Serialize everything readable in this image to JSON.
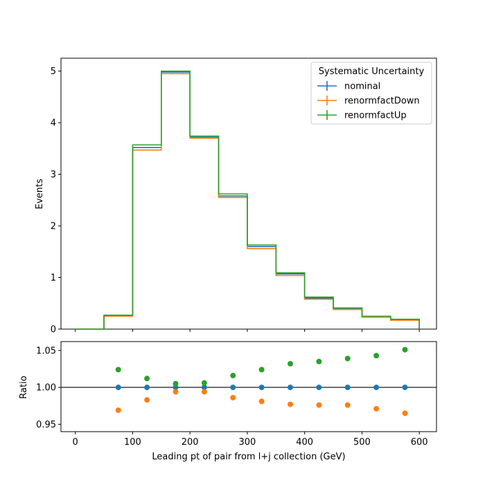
{
  "chart_data": [
    {
      "type": "line",
      "panel": "main",
      "drawstyle": "steps",
      "bin_edges": [
        0,
        50,
        100,
        150,
        200,
        250,
        300,
        350,
        400,
        450,
        500,
        550,
        600
      ],
      "xlim": [
        -25,
        630
      ],
      "ylim": [
        0,
        5.25
      ],
      "ylabel": "Events",
      "y_ticks": [
        "0",
        "1",
        "2",
        "3",
        "4",
        "5"
      ],
      "legend": {
        "title": "Systematic Uncertainty",
        "placement": "upper right"
      },
      "series": [
        {
          "name": "nominal",
          "color": "#1f77b4",
          "values": [
            0.0,
            0.26,
            3.52,
            4.98,
            3.72,
            2.58,
            1.6,
            1.07,
            0.6,
            0.39,
            0.24,
            0.18
          ]
        },
        {
          "name": "renormfactDown",
          "color": "#ff7f0e",
          "values": [
            0.0,
            0.25,
            3.47,
            4.95,
            3.7,
            2.55,
            1.56,
            1.04,
            0.58,
            0.38,
            0.23,
            0.17
          ]
        },
        {
          "name": "renormfactUp",
          "color": "#2ca02c",
          "values": [
            0.0,
            0.27,
            3.57,
            5.0,
            3.74,
            2.62,
            1.63,
            1.09,
            0.62,
            0.41,
            0.25,
            0.19
          ]
        }
      ]
    },
    {
      "type": "scatter",
      "panel": "ratio",
      "x": [
        75,
        125,
        175,
        225,
        275,
        325,
        375,
        425,
        475,
        525,
        575
      ],
      "xlim": [
        -25,
        630
      ],
      "ylim": [
        0.94,
        1.062
      ],
      "xlabel": "Leading pt of pair from l+j collection (GeV)",
      "ylabel": "Ratio",
      "x_ticks": [
        "0",
        "100",
        "200",
        "300",
        "400",
        "500",
        "600"
      ],
      "y_ticks": [
        "0.95",
        "1.00",
        "1.05"
      ],
      "reference_line": 1.0,
      "series": [
        {
          "name": "nominal",
          "color": "#1f77b4",
          "values": [
            1.0,
            1.0,
            1.0,
            1.0,
            1.0,
            1.0,
            1.0,
            1.0,
            1.0,
            1.0,
            1.0
          ]
        },
        {
          "name": "renormfactDown",
          "color": "#ff7f0e",
          "values": [
            0.969,
            0.983,
            0.994,
            0.994,
            0.986,
            0.981,
            0.977,
            0.976,
            0.976,
            0.971,
            0.965
          ]
        },
        {
          "name": "renormfactUp",
          "color": "#2ca02c",
          "values": [
            1.024,
            1.012,
            1.005,
            1.006,
            1.016,
            1.024,
            1.032,
            1.035,
            1.039,
            1.043,
            1.051
          ]
        }
      ]
    }
  ]
}
